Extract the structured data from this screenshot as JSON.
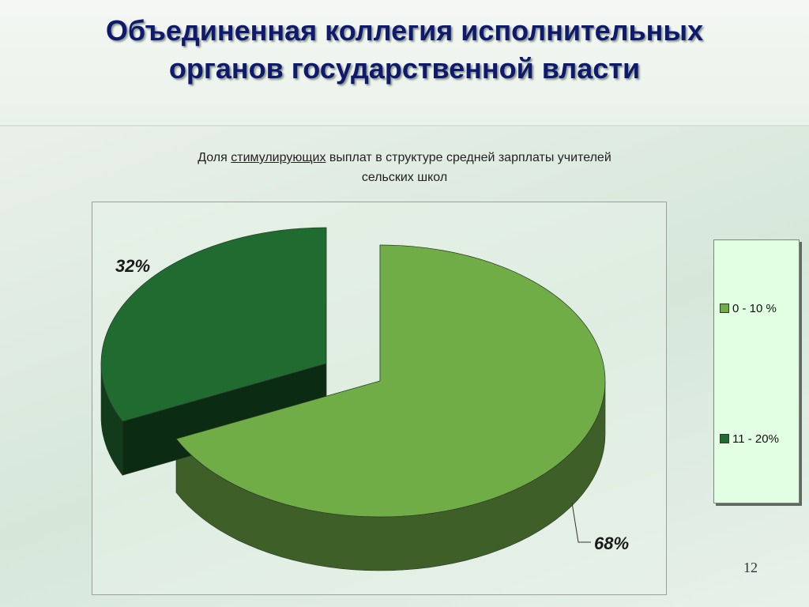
{
  "slide": {
    "title_line1": "Объединенная коллегия исполнительных",
    "title_line2": "органов государственной власти",
    "page_number": "12"
  },
  "chart_data": {
    "type": "pie",
    "title_parts": [
      "Доля ",
      "стимулирующих",
      " выплат в структуре средней зарплаты учителей"
    ],
    "title_line2": "сельских  школ",
    "categories": [
      "0 - 10 %",
      "11 - 20%"
    ],
    "values": [
      68,
      32
    ],
    "data_labels": [
      "68%",
      "32%"
    ],
    "colors": {
      "0 - 10 %": "#70ad47",
      "11 - 20%": "#1f6b30"
    },
    "legend_position": "right",
    "exploded": true,
    "three_d": true
  }
}
